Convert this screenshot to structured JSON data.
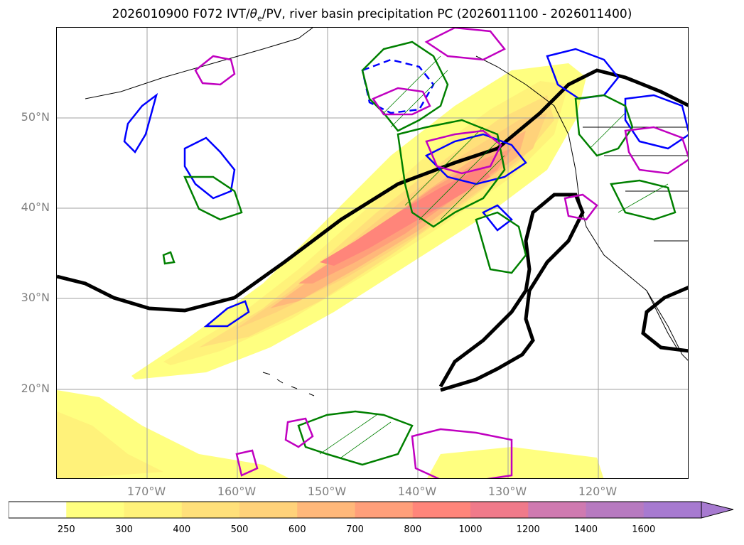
{
  "title": {
    "prefix": "2026010900 F072 IVT/",
    "theta": "θ",
    "theta_sub": "e",
    "suffix": "/PV, river basin precipitation PC (2026011100 - 2026011400)"
  },
  "latitude_labels": [
    "50°N",
    "40°N",
    "30°N",
    "20°N"
  ],
  "longitude_labels": [
    "170°W",
    "160°W",
    "150°W",
    "140°W",
    "130°W",
    "120°W"
  ],
  "colorbar": {
    "ticks": [
      "250",
      "300",
      "400",
      "500",
      "600",
      "700",
      "800",
      "1000",
      "1200",
      "1400",
      "1600"
    ],
    "colors": [
      "#ffffff",
      "#ffff80",
      "#fff27a",
      "#ffe07a",
      "#ffd27a",
      "#ffb87a",
      "#ff9f7a",
      "#ff857a",
      "#f07a8a",
      "#cf7ab0",
      "#b77ac0",
      "#a77ad0"
    ],
    "extend": "max"
  },
  "contour_colors": {
    "theta_e": "#000000",
    "pv_positive": "#0000ff",
    "pv_green": "#008000",
    "pv_magenta": "#c000c0"
  }
}
